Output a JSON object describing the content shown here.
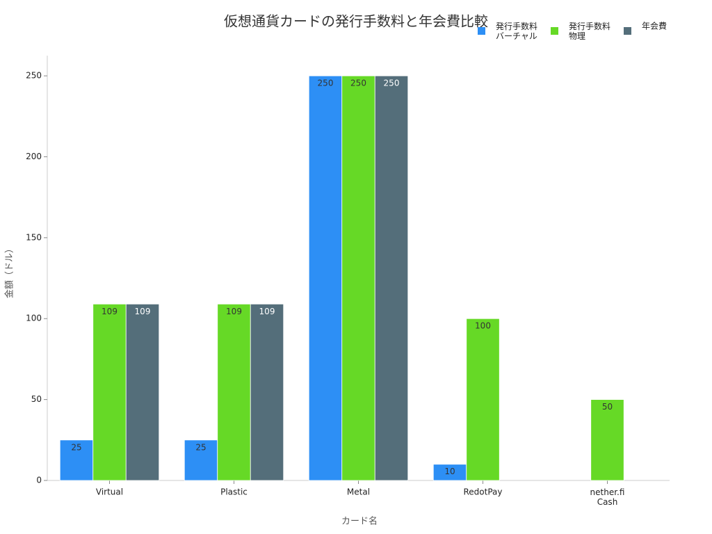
{
  "chart_data": {
    "type": "bar",
    "title": "仮想通貨カードの発行手数料と年会費比較",
    "x_label": "カード名",
    "y_label": "金額（ドル）",
    "categories": [
      "Virtual",
      "Plastic",
      "Metal",
      "RedotPay",
      "nether.fi\nCash"
    ],
    "series": [
      {
        "name": "発行手数料\nバーチャル",
        "color": "#2d8ff5",
        "values": [
          25,
          25,
          250,
          10,
          null
        ]
      },
      {
        "name": "発行手数料\n物理",
        "color": "#66d926",
        "values": [
          109,
          109,
          250,
          100,
          50
        ]
      },
      {
        "name": "年会費",
        "color": "#546e7a",
        "values": [
          109,
          109,
          250,
          null,
          null
        ]
      }
    ],
    "ylim": [
      0,
      262.5
    ],
    "yticks": [
      0,
      50,
      100,
      150,
      200,
      250
    ],
    "grid": false,
    "legend": "top-right"
  }
}
